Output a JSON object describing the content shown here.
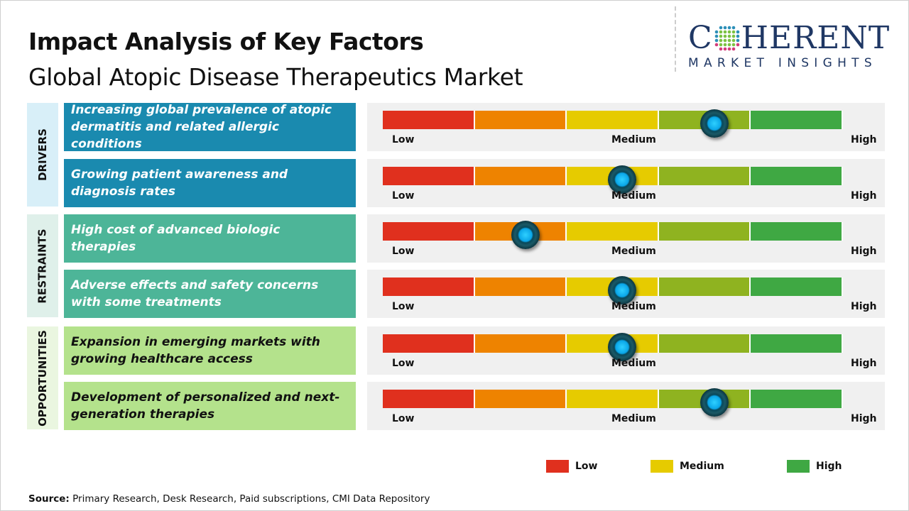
{
  "header": {
    "title": "Impact Analysis of Key Factors",
    "subtitle": "Global Atopic Disease Therapeutics Market"
  },
  "logo": {
    "line1_a": "C",
    "line1_b": "HERENT",
    "line2": "MARKET INSIGHTS"
  },
  "scale": {
    "low": "Low",
    "medium": "Medium",
    "high": "High",
    "colors": [
      "#e0301e",
      "#ee8300",
      "#e6cb00",
      "#8fb320",
      "#3fa843"
    ]
  },
  "sections": [
    {
      "label": "DRIVERS",
      "label_bg": "#d8eff8",
      "box_bg": "#1a8aaf",
      "text_color": "#ffffff",
      "factors": [
        {
          "text": "Increasing global prevalence of atopic dermatitis and related allergic conditions",
          "impact": 0.72
        },
        {
          "text": "Growing patient awareness and diagnosis rates",
          "impact": 0.52
        }
      ]
    },
    {
      "label": "RESTRAINTS",
      "label_bg": "#dff0ea",
      "box_bg": "#4db598",
      "text_color": "#ffffff",
      "factors": [
        {
          "text": "High cost of advanced biologic therapies",
          "impact": 0.31
        },
        {
          "text": "Adverse effects and safety concerns with some treatments",
          "impact": 0.52
        }
      ]
    },
    {
      "label": "OPPORTUNITIES",
      "label_bg": "#eaf6e0",
      "box_bg": "#b4e28c",
      "text_color": "#111111",
      "factors": [
        {
          "text": "Expansion in emerging markets with growing healthcare access",
          "impact": 0.52
        },
        {
          "text": "Development of personalized and next-generation therapies",
          "impact": 0.72
        }
      ]
    }
  ],
  "legend": [
    {
      "label": "Low",
      "color": "#e0301e"
    },
    {
      "label": "Medium",
      "color": "#e6cb00"
    },
    {
      "label": "High",
      "color": "#3fa843"
    }
  ],
  "source": {
    "label": "Source:",
    "text": " Primary Research, Desk Research, Paid subscriptions, CMI Data Repository"
  }
}
